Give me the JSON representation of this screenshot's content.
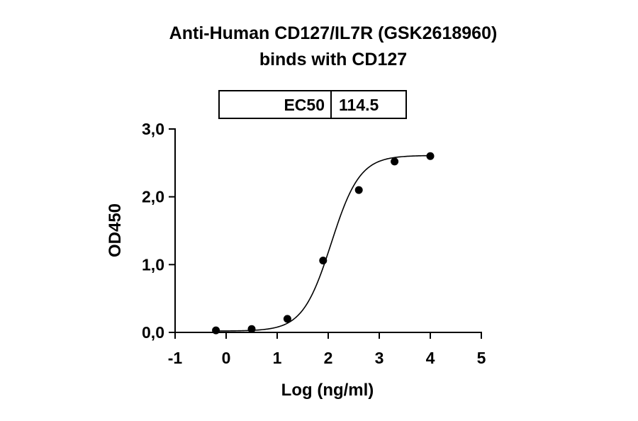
{
  "chart_data": {
    "type": "scatter",
    "title": [
      "Anti-Human CD127/IL7R (GSK2618960)",
      "binds with CD127"
    ],
    "xlabel": "Log (ng/ml)",
    "ylabel": "OD450",
    "xlim": [
      -1,
      5
    ],
    "ylim": [
      0,
      3
    ],
    "xticks": [
      -1,
      0,
      1,
      2,
      3,
      4,
      5
    ],
    "xtick_labels": [
      "-1",
      "0",
      "1",
      "2",
      "3",
      "4",
      "5"
    ],
    "yticks": [
      0,
      1,
      2,
      3
    ],
    "ytick_labels": [
      "0,0",
      "1,0",
      "2,0",
      "3,0"
    ],
    "series": [
      {
        "x": [
          -0.2,
          0.5,
          1.2,
          1.9,
          2.6,
          3.3,
          4.0
        ],
        "y": [
          0.03,
          0.05,
          0.2,
          1.06,
          2.1,
          2.52,
          2.6
        ]
      }
    ],
    "fit_curve": {
      "model": "4PL",
      "bottom": 0.02,
      "top": 2.61,
      "log_ec50": 2.059,
      "hill_slope": 1.55,
      "x_start": -0.2,
      "x_end": 4.0
    },
    "ec50_box": {
      "label": "EC50",
      "value": "114.5"
    },
    "grid": false,
    "legend": "none",
    "colors": {
      "points": "#000000",
      "line": "#000000",
      "background": "#ffffff"
    }
  }
}
